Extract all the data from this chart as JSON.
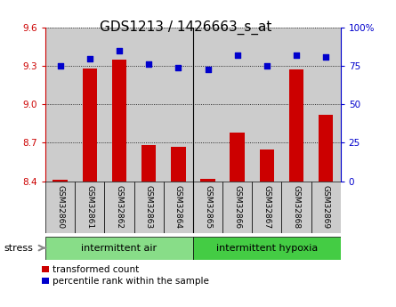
{
  "title": "GDS1213 / 1426663_s_at",
  "samples": [
    "GSM32860",
    "GSM32861",
    "GSM32862",
    "GSM32863",
    "GSM32864",
    "GSM32865",
    "GSM32866",
    "GSM32867",
    "GSM32868",
    "GSM32869"
  ],
  "red_values": [
    8.41,
    9.28,
    9.35,
    8.68,
    8.67,
    8.42,
    8.78,
    8.65,
    9.27,
    8.92
  ],
  "blue_values": [
    75,
    80,
    85,
    76,
    74,
    73,
    82,
    75,
    82,
    81
  ],
  "ylim_left": [
    8.4,
    9.6
  ],
  "ylim_right": [
    0,
    100
  ],
  "yticks_left": [
    8.4,
    8.7,
    9.0,
    9.3,
    9.6
  ],
  "yticks_right": [
    0,
    25,
    50,
    75,
    100
  ],
  "group1_label": "intermittent air",
  "group2_label": "intermittent hypoxia",
  "stress_label": "stress",
  "legend1_label": "transformed count",
  "legend2_label": "percentile rank within the sample",
  "red_color": "#cc0000",
  "blue_color": "#0000cc",
  "bar_width": 0.5,
  "group_bg_color1": "#88dd88",
  "group_bg_color2": "#44cc44",
  "sample_bg_color": "#cccccc",
  "title_fontsize": 11,
  "tick_fontsize": 7.5,
  "label_fontsize": 8
}
